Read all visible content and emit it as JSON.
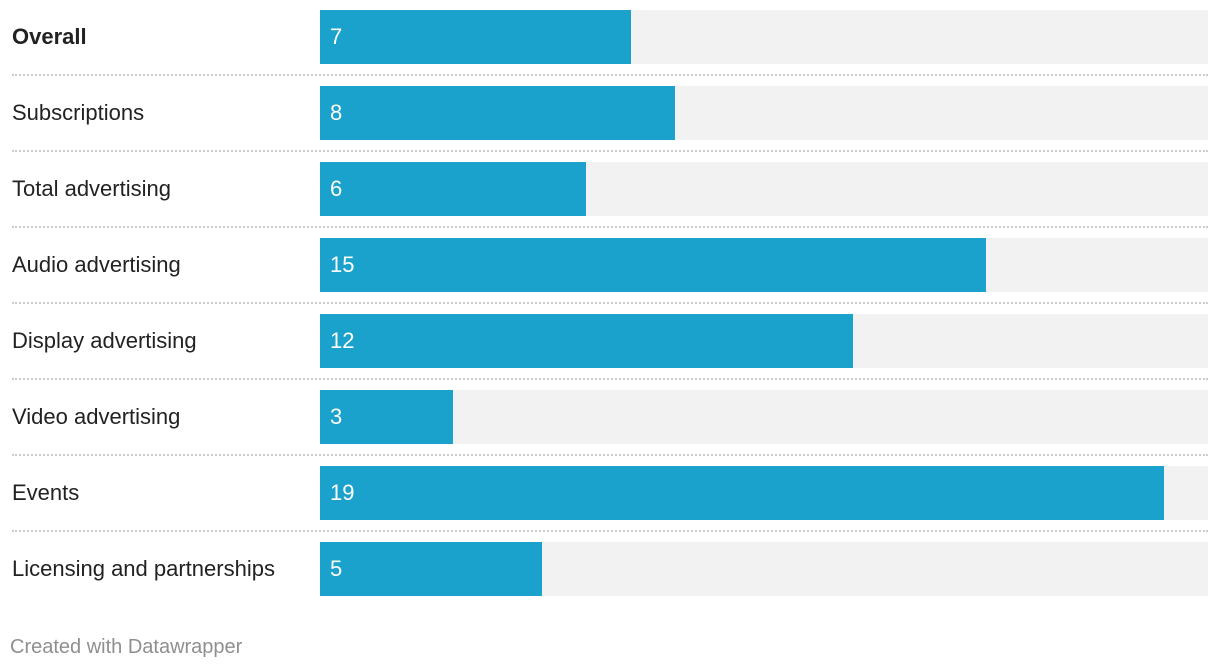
{
  "chart_data": {
    "type": "bar",
    "orientation": "horizontal",
    "categories": [
      "Overall",
      "Subscriptions",
      "Total advertising",
      "Audio advertising",
      "Display advertising",
      "Video advertising",
      "Events",
      "Licensing and partnerships"
    ],
    "values": [
      7,
      8,
      6,
      15,
      12,
      3,
      19,
      5
    ],
    "bold_categories": [
      "Overall"
    ],
    "xlim": [
      0,
      20
    ],
    "bar_color": "#1aa2cc",
    "track_color": "#f2f2f2",
    "value_labels": "inside-left",
    "grid": false,
    "title": "",
    "xlabel": "",
    "ylabel": ""
  },
  "footer": {
    "credit": "Created with Datawrapper"
  }
}
